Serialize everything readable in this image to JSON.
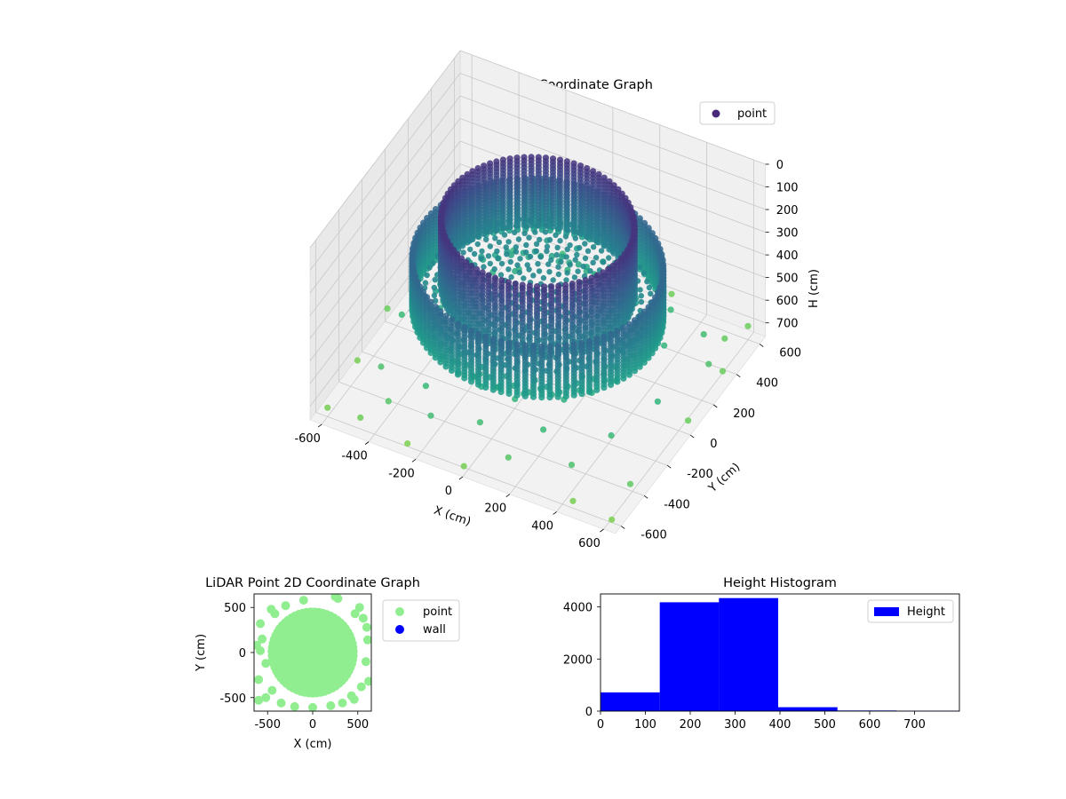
{
  "chart_data": [
    {
      "type": "scatter3d",
      "title": "LiDAR Point 3D Coordinate Graph",
      "xlabel": "X (cm)",
      "ylabel": "Y (cm)",
      "zlabel": "H (cm)",
      "xlim": [
        -650,
        650
      ],
      "ylim": [
        -650,
        650
      ],
      "zlim": [
        0,
        760
      ],
      "z_inverted": true,
      "x_ticks": [
        -600,
        -400,
        -200,
        0,
        200,
        400,
        600
      ],
      "y_ticks": [
        -600,
        -400,
        -200,
        0,
        200,
        400,
        600
      ],
      "z_ticks": [
        0,
        100,
        200,
        300,
        400,
        500,
        600,
        700
      ],
      "colormap": "viridis",
      "legend": {
        "entries": [
          "point"
        ],
        "placement": "upper right",
        "marker_color": "#482878"
      },
      "structure": {
        "inner_wall": {
          "radius": 370,
          "h_range": [
            70,
            380
          ]
        },
        "outer_ring": {
          "radius": 480,
          "h_range": [
            250,
            480
          ]
        },
        "floor_disc": {
          "radius": 460,
          "h": 390
        },
        "scatter_points": [
          [
            -560,
            150,
            560
          ],
          [
            -520,
            -120,
            600
          ],
          [
            -500,
            320,
            620
          ],
          [
            -480,
            -380,
            640
          ],
          [
            -440,
            480,
            590
          ],
          [
            -380,
            -520,
            660
          ],
          [
            -350,
            100,
            520
          ],
          [
            -320,
            -260,
            560
          ],
          [
            -300,
            400,
            580
          ],
          [
            -260,
            -440,
            600
          ],
          [
            -220,
            250,
            540
          ],
          [
            -180,
            -560,
            620
          ],
          [
            -140,
            500,
            600
          ],
          [
            -100,
            -300,
            580
          ],
          [
            -60,
            380,
            560
          ],
          [
            0,
            -500,
            620
          ],
          [
            40,
            560,
            640
          ],
          [
            80,
            -360,
            580
          ],
          [
            120,
            460,
            600
          ],
          [
            160,
            -580,
            660
          ],
          [
            200,
            300,
            560
          ],
          [
            240,
            -440,
            600
          ],
          [
            280,
            520,
            620
          ],
          [
            320,
            -200,
            560
          ],
          [
            360,
            420,
            600
          ],
          [
            400,
            -520,
            640
          ],
          [
            440,
            200,
            580
          ],
          [
            480,
            -340,
            600
          ],
          [
            520,
            380,
            620
          ],
          [
            560,
            -100,
            580
          ],
          [
            600,
            260,
            640
          ],
          [
            620,
            -460,
            680
          ],
          [
            -600,
            -600,
            720
          ],
          [
            -620,
            560,
            700
          ],
          [
            600,
            600,
            700
          ],
          [
            620,
            -620,
            730
          ],
          [
            -640,
            0,
            700
          ],
          [
            640,
            0,
            700
          ],
          [
            0,
            640,
            700
          ],
          [
            0,
            -640,
            720
          ],
          [
            -580,
            420,
            700
          ],
          [
            560,
            480,
            690
          ],
          [
            -460,
            -600,
            710
          ],
          [
            450,
            -610,
            720
          ],
          [
            -250,
            -620,
            730
          ],
          [
            260,
            630,
            710
          ],
          [
            -620,
            -300,
            720
          ],
          [
            630,
            320,
            700
          ]
        ]
      }
    },
    {
      "type": "scatter",
      "title": "LiDAR Point 2D Coordinate Graph",
      "xlabel": "X (cm)",
      "ylabel": "Y (cm)",
      "xlim": [
        -650,
        650
      ],
      "ylim": [
        -650,
        650
      ],
      "x_ticks": [
        -500,
        0,
        500
      ],
      "y_ticks": [
        -500,
        0,
        500
      ],
      "legend": {
        "placement": "outside right",
        "entries": [
          {
            "label": "point",
            "color": "#90ee90"
          },
          {
            "label": "wall",
            "color": "#0000ff"
          }
        ]
      },
      "series": [
        {
          "name": "point",
          "color": "#90ee90",
          "main_disc": {
            "center": [
              0,
              0
            ],
            "radius": 480
          },
          "outliers": [
            [
              -560,
              150
            ],
            [
              -520,
              -120
            ],
            [
              -600,
              -300
            ],
            [
              -580,
              320
            ],
            [
              -520,
              -500
            ],
            [
              -460,
              480
            ],
            [
              -600,
              -530
            ],
            [
              -350,
              -560
            ],
            [
              -200,
              -600
            ],
            [
              0,
              -610
            ],
            [
              200,
              -590
            ],
            [
              330,
              -560
            ],
            [
              460,
              -520
            ],
            [
              540,
              -380
            ],
            [
              560,
              380
            ],
            [
              600,
              280
            ],
            [
              520,
              500
            ],
            [
              280,
              600
            ],
            [
              250,
              620
            ],
            [
              -100,
              580
            ],
            [
              -300,
              520
            ],
            [
              590,
              -100
            ],
            [
              -620,
              80
            ],
            [
              610,
              140
            ],
            [
              620,
              -320
            ],
            [
              -580,
              20
            ],
            [
              430,
              -480
            ],
            [
              -450,
              -420
            ],
            [
              470,
              430
            ],
            [
              -420,
              430
            ]
          ]
        }
      ]
    },
    {
      "type": "bar",
      "title": "Height Histogram",
      "xlabel": "",
      "ylabel": "",
      "xlim": [
        0,
        800
      ],
      "ylim": [
        0,
        4500
      ],
      "x_ticks": [
        0,
        100,
        200,
        300,
        400,
        500,
        600,
        700
      ],
      "y_ticks": [
        0,
        2000,
        4000
      ],
      "color": "#0000ff",
      "legend": {
        "entries": [
          "Height"
        ],
        "placement": "upper right"
      },
      "bin_edges": [
        0,
        132,
        264,
        396,
        528,
        660,
        800
      ],
      "values": [
        720,
        4180,
        4340,
        150,
        25,
        15
      ],
      "series": [
        {
          "name": "Height"
        }
      ]
    }
  ]
}
